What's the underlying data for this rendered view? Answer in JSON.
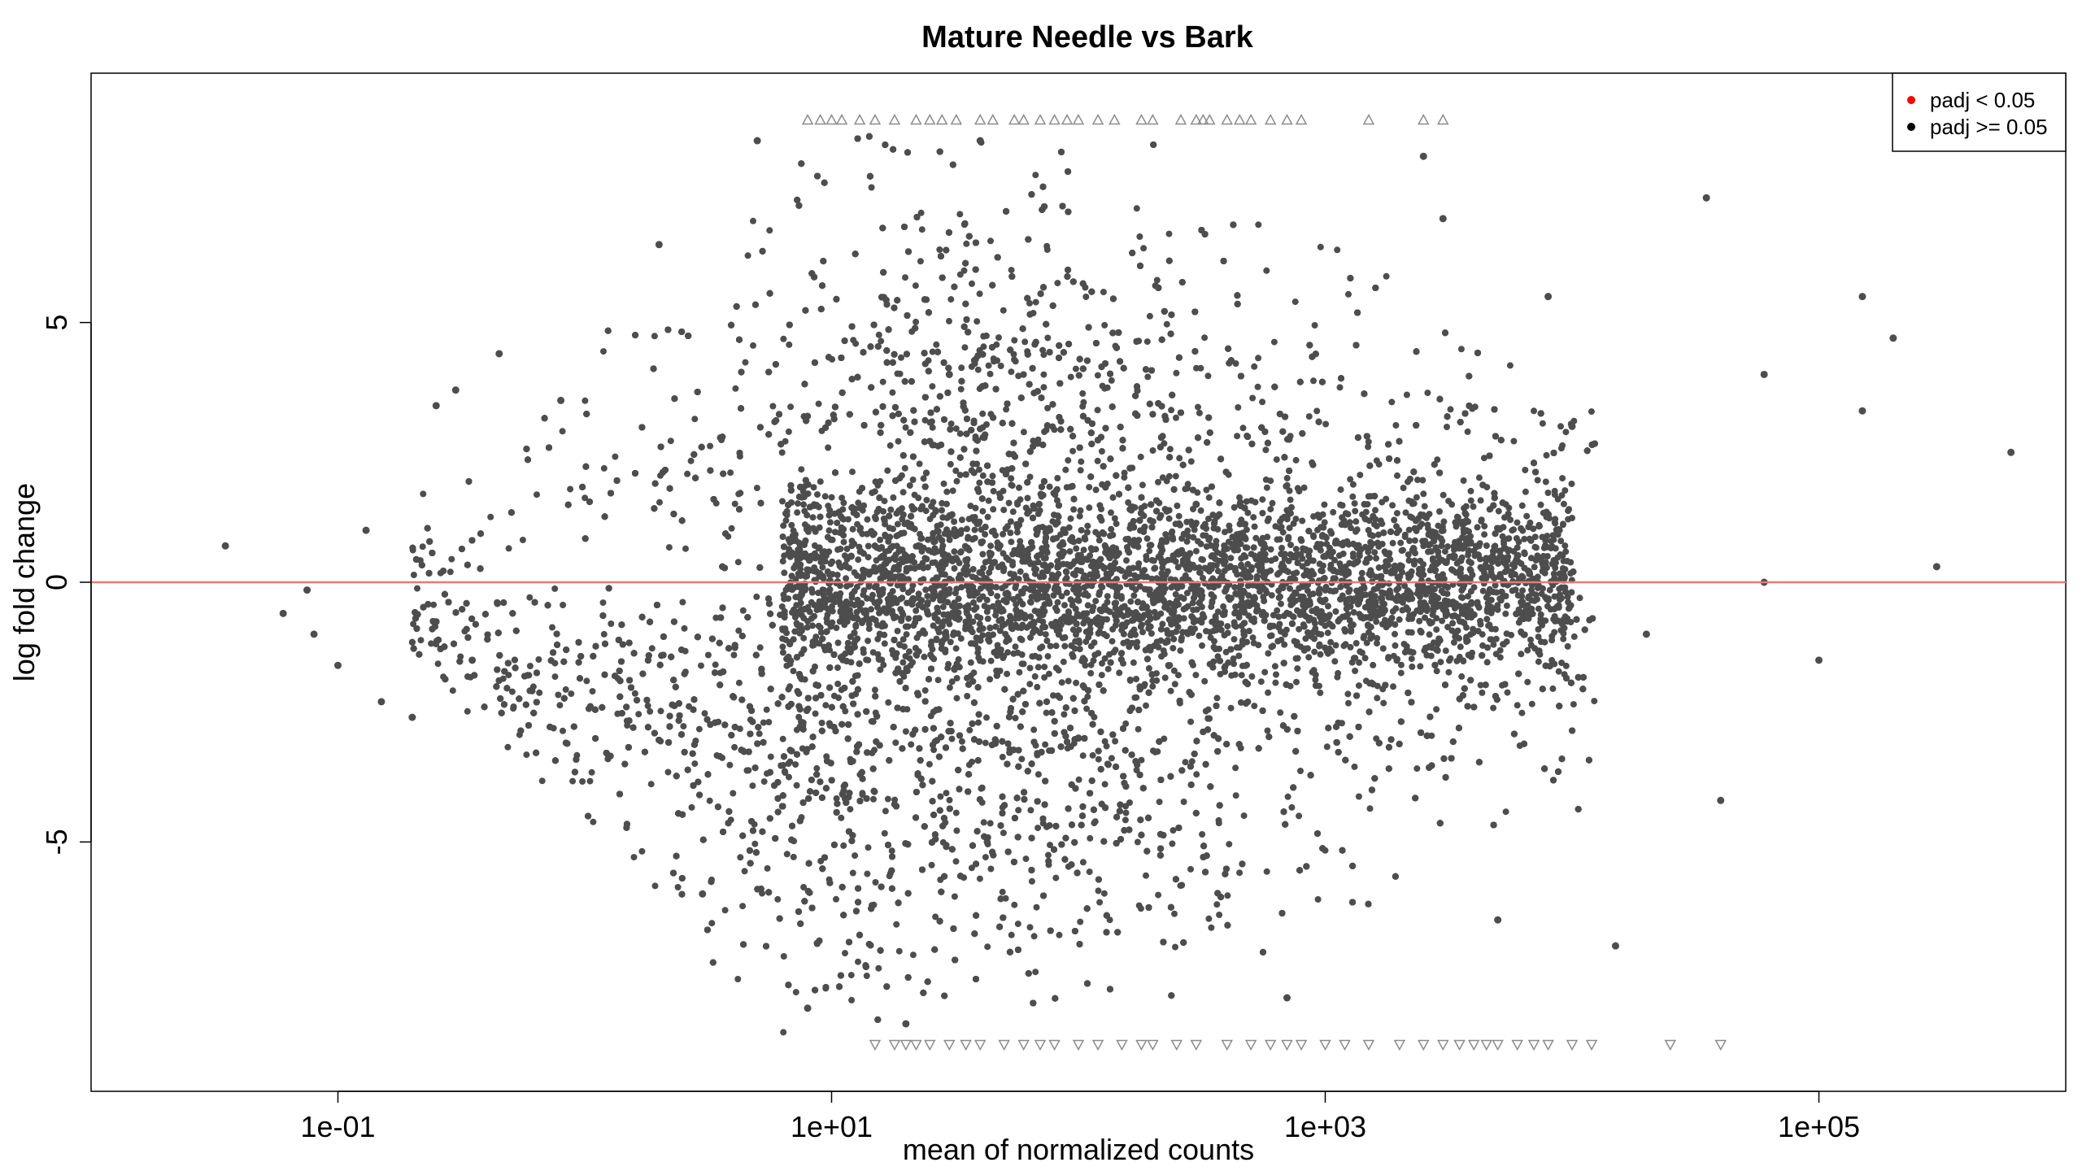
{
  "chart_data": {
    "type": "scatter",
    "title": "Mature Needle vs Bark",
    "xlabel": "mean of normalized counts",
    "ylabel": "log fold change",
    "x_scale": "log10",
    "xlim": [
      0.01,
      1000000
    ],
    "ylim": [
      -9.8,
      9.8
    ],
    "x_ticks": [
      {
        "value": 0.1,
        "label": "1e-01"
      },
      {
        "value": 10,
        "label": "1e+01"
      },
      {
        "value": 1000,
        "label": "1e+03"
      },
      {
        "value": 100000,
        "label": "1e+05"
      }
    ],
    "y_ticks": [
      {
        "value": -5,
        "label": "-5"
      },
      {
        "value": 0,
        "label": "0"
      },
      {
        "value": 5,
        "label": "5"
      }
    ],
    "reference_line": {
      "y": 0,
      "color": "#e87a7a"
    },
    "point_color": "#4d4d4d",
    "clipped_marker_color": "#8c8c8c",
    "legend": {
      "placement": "top-right",
      "entries": [
        {
          "label": "padj < 0.05",
          "color": "#ff0000"
        },
        {
          "label": "padj >= 0.05",
          "color": "#000000"
        }
      ]
    },
    "series": [
      {
        "points": [
          [
            0.035,
            0.7
          ],
          [
            0.075,
            -0.15
          ],
          [
            0.06,
            -0.6
          ],
          [
            0.08,
            -1.0
          ],
          [
            0.1,
            -1.6
          ],
          [
            0.13,
            1.0
          ],
          [
            0.15,
            -2.3
          ],
          [
            0.2,
            -2.6
          ],
          [
            0.25,
            3.4
          ],
          [
            0.3,
            3.7
          ],
          [
            0.35,
            -1.5
          ],
          [
            0.45,
            4.4
          ],
          [
            0.8,
            3.5
          ],
          [
            2.0,
            6.5
          ],
          [
            5.0,
            8.5
          ],
          [
            3.0,
            -6.0
          ],
          [
            8.0,
            -8.2
          ],
          [
            12.0,
            0.5
          ],
          [
            30.0,
            4.0
          ],
          [
            100.0,
            -3.0
          ],
          [
            300.0,
            1.5
          ],
          [
            1000.0,
            0.5
          ],
          [
            3000.0,
            7.0
          ],
          [
            5000.0,
            -6.5
          ],
          [
            10000.0,
            3.0
          ],
          [
            20000.0,
            -1.0
          ],
          [
            35000.0,
            7.4
          ],
          [
            60000.0,
            4.0
          ],
          [
            100000.0,
            -1.5
          ],
          [
            150000.0,
            3.3
          ],
          [
            300000.0,
            0.3
          ],
          [
            600000.0,
            2.5
          ],
          [
            150000.0,
            5.5
          ],
          [
            200000.0,
            4.7
          ],
          [
            40000.0,
            -4.2
          ],
          [
            15000.0,
            -7.0
          ],
          [
            8000.0,
            5.5
          ],
          [
            60000.0,
            0.0
          ],
          [
            2500.0,
            8.2
          ],
          [
            700.0,
            -8.0
          ],
          [
            40.0,
            8.5
          ],
          [
            20.0,
            -8.5
          ]
        ]
      }
    ],
    "clipped_points": {
      "up": [
        8,
        9,
        10,
        11,
        13,
        15,
        18,
        22,
        25,
        28,
        32,
        40,
        45,
        55,
        60,
        70,
        80,
        90,
        100,
        120,
        140,
        180,
        200,
        260,
        300,
        320,
        340,
        400,
        450,
        500,
        600,
        700,
        800,
        1500,
        2500,
        3000
      ],
      "down": [
        15,
        18,
        20,
        22,
        25,
        30,
        35,
        40,
        50,
        60,
        70,
        80,
        100,
        120,
        150,
        180,
        200,
        250,
        300,
        400,
        500,
        600,
        700,
        800,
        1000,
        1200,
        1500,
        2000,
        2500,
        3000,
        3500,
        4000,
        4500,
        5000,
        6000,
        7000,
        8000,
        10000,
        12000,
        25000,
        40000
      ]
    }
  }
}
